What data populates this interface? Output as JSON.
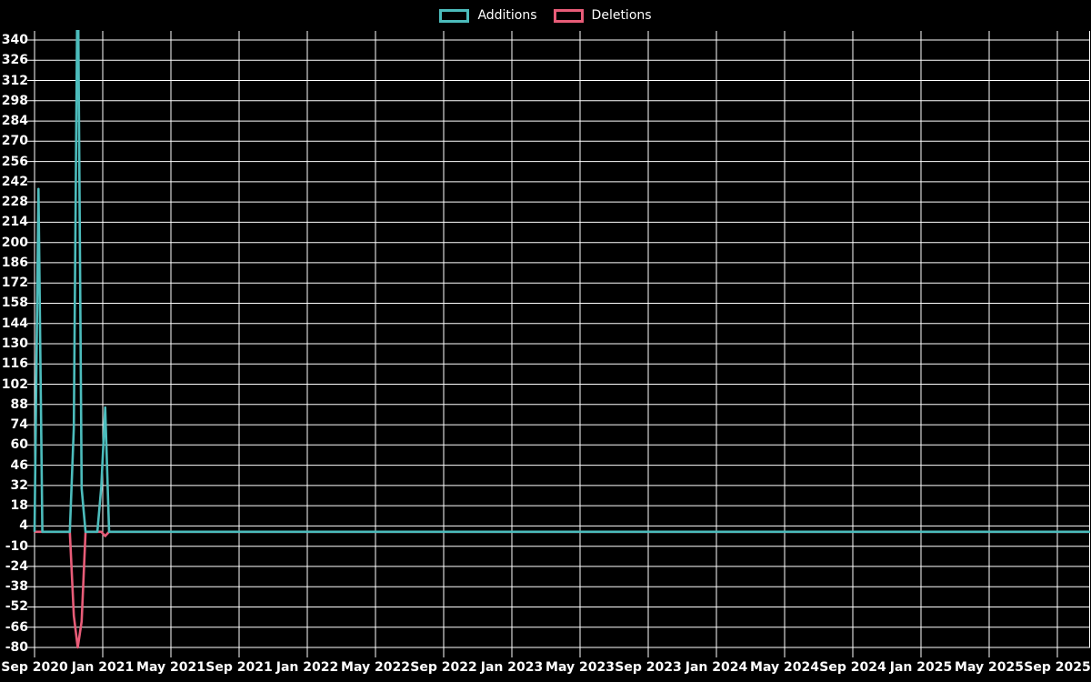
{
  "chart_data": {
    "type": "line",
    "title": "",
    "background_color": "#000000",
    "grid": {
      "show": true,
      "color": "#ffffff"
    },
    "text_color": "#ffffff",
    "legend_position": "top-center",
    "legend": [
      "Additions",
      "Deletions"
    ],
    "x_axis": {
      "label": "",
      "scale": "time",
      "interval": "weekly",
      "start": "2020-08-30",
      "weeks": 270,
      "tick_labels": [
        "Sep 2020",
        "Jan 2021",
        "May 2021",
        "Sep 2021",
        "Jan 2022",
        "May 2022",
        "Sep 2022",
        "Jan 2023",
        "May 2023",
        "Sep 2023",
        "Jan 2024",
        "May 2024",
        "Sep 2024",
        "Jan 2025",
        "May 2025",
        "Sep 2025"
      ]
    },
    "y_axis": {
      "label": "",
      "min": -80,
      "max": 340,
      "step": 14,
      "tick_labels": [
        "340",
        "326",
        "312",
        "298",
        "284",
        "270",
        "256",
        "242",
        "228",
        "214",
        "200",
        "186",
        "172",
        "158",
        "144",
        "130",
        "116",
        "102",
        "88",
        "74",
        "60",
        "46",
        "32",
        "18",
        "4",
        "-10",
        "-24",
        "-38",
        "-52",
        "-66",
        "-80"
      ]
    },
    "series": [
      {
        "name": "Additions",
        "color": "#4cbcbc",
        "default_value": 0,
        "nonzero_points": [
          {
            "date": "2020-09-06",
            "value": 237
          },
          {
            "date": "2020-11-08",
            "value": 72
          },
          {
            "date": "2020-11-15",
            "value": 405,
            "clipped_above_axis_max": true
          },
          {
            "date": "2020-11-22",
            "value": 30
          },
          {
            "date": "2020-12-27",
            "value": 31
          },
          {
            "date": "2021-01-03",
            "value": 86
          }
        ]
      },
      {
        "name": "Deletions",
        "color": "#e85c78",
        "default_value": 0,
        "nonzero_points": [
          {
            "date": "2020-11-08",
            "value": -58
          },
          {
            "date": "2020-11-15",
            "value": -80
          },
          {
            "date": "2020-11-22",
            "value": -62
          },
          {
            "date": "2021-01-03",
            "value": -3
          }
        ]
      }
    ]
  }
}
